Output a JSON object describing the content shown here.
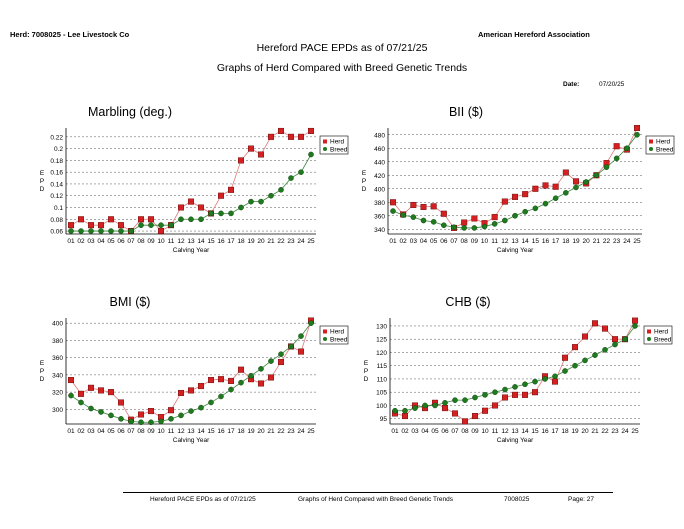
{
  "header": {
    "herd": "Herd: 7008025 - Lee Livestock Co",
    "org": "American Hereford Association",
    "title": "Hereford PACE EPDs as of 07/21/25",
    "subtitle": "Graphs of Herd Compared with Breed Genetic Trends",
    "date_label": "Date:",
    "date_value": "07/20/25"
  },
  "footer": {
    "doc": "Hereford PACE EPDs as of 07/21/25",
    "desc": "Graphs of Herd Compared with Breed Genetic Trends",
    "herd_no": "7008025",
    "page": "Page:  27"
  },
  "colors": {
    "herd": "#d42020",
    "breed": "#1f7a1f",
    "herd_line": "#e07a7a",
    "breed_line": "#3a8a3a"
  },
  "chart_data": [
    {
      "type": "line",
      "title": "Marbling (deg.)",
      "xlabel": "Calving Year",
      "ylabel": "EPD",
      "categories": [
        "01",
        "02",
        "03",
        "04",
        "05",
        "06",
        "07",
        "08",
        "09",
        "10",
        "11",
        "12",
        "13",
        "14",
        "15",
        "16",
        "17",
        "18",
        "19",
        "20",
        "21",
        "22",
        "23",
        "24",
        "25"
      ],
      "yticks": [
        "0.06",
        "0.08",
        "0.1",
        "0.12",
        "0.14",
        "0.16",
        "0.18",
        "0.2",
        "0.22"
      ],
      "ylim": [
        0.055,
        0.235
      ],
      "series": [
        {
          "name": "Herd",
          "values": [
            0.07,
            0.08,
            0.07,
            0.07,
            0.08,
            0.07,
            0.06,
            0.08,
            0.08,
            0.06,
            0.07,
            0.1,
            0.11,
            0.1,
            0.09,
            0.12,
            0.13,
            0.18,
            0.2,
            0.19,
            0.22,
            0.23,
            0.22,
            0.22,
            0.23
          ]
        },
        {
          "name": "Breed",
          "values": [
            0.06,
            0.06,
            0.06,
            0.06,
            0.06,
            0.06,
            0.06,
            0.07,
            0.07,
            0.07,
            0.07,
            0.08,
            0.08,
            0.08,
            0.09,
            0.09,
            0.09,
            0.1,
            0.11,
            0.11,
            0.12,
            0.13,
            0.15,
            0.16,
            0.19
          ]
        }
      ],
      "legend": [
        "Herd",
        "Breed"
      ]
    },
    {
      "type": "line",
      "title": "BII ($)",
      "xlabel": "Calving Year",
      "ylabel": "EPD",
      "categories": [
        "01",
        "02",
        "03",
        "04",
        "05",
        "06",
        "07",
        "08",
        "09",
        "10",
        "11",
        "12",
        "13",
        "14",
        "15",
        "16",
        "17",
        "18",
        "19",
        "20",
        "21",
        "22",
        "23",
        "24",
        "25"
      ],
      "yticks": [
        "340",
        "360",
        "380",
        "400",
        "420",
        "440",
        "460",
        "480"
      ],
      "ylim": [
        333,
        490
      ],
      "series": [
        {
          "name": "Herd",
          "values": [
            380,
            362,
            376,
            373,
            374,
            363,
            342,
            350,
            356,
            349,
            358,
            381,
            388,
            392,
            400,
            405,
            403,
            424,
            411,
            408,
            420,
            438,
            463,
            458,
            490
          ]
        },
        {
          "name": "Breed",
          "values": [
            367,
            361,
            358,
            353,
            351,
            346,
            343,
            342,
            342,
            344,
            348,
            353,
            360,
            366,
            371,
            378,
            386,
            394,
            402,
            410,
            420,
            432,
            445,
            460,
            480
          ]
        }
      ],
      "legend": [
        "Herd",
        "Breed"
      ]
    },
    {
      "type": "line",
      "title": "BMI ($)",
      "xlabel": "Calving Year",
      "ylabel": "EPD",
      "categories": [
        "01",
        "02",
        "03",
        "04",
        "05",
        "06",
        "07",
        "08",
        "09",
        "10",
        "11",
        "12",
        "13",
        "14",
        "15",
        "16",
        "17",
        "18",
        "19",
        "20",
        "21",
        "22",
        "23",
        "24",
        "25"
      ],
      "yticks": [
        "300",
        "320",
        "340",
        "360",
        "380",
        "400"
      ],
      "ylim": [
        283,
        406
      ],
      "series": [
        {
          "name": "Herd",
          "values": [
            334,
            318,
            325,
            322,
            320,
            308,
            288,
            294,
            298,
            291,
            299,
            319,
            322,
            327,
            334,
            335,
            333,
            346,
            335,
            330,
            337,
            355,
            373,
            367,
            403
          ]
        },
        {
          "name": "Breed",
          "values": [
            316,
            308,
            301,
            297,
            293,
            289,
            286,
            285,
            285,
            286,
            289,
            293,
            298,
            302,
            308,
            315,
            323,
            331,
            339,
            347,
            356,
            364,
            373,
            385,
            400
          ]
        }
      ],
      "legend": [
        "Herd",
        "Breed"
      ]
    },
    {
      "type": "line",
      "title": "CHB ($)",
      "xlabel": "Calving Year",
      "ylabel": "EPD",
      "categories": [
        "01",
        "02",
        "03",
        "04",
        "05",
        "06",
        "07",
        "08",
        "09",
        "10",
        "11",
        "12",
        "13",
        "14",
        "15",
        "16",
        "17",
        "18",
        "19",
        "20",
        "21",
        "22",
        "23",
        "24",
        "25"
      ],
      "yticks": [
        "95",
        "100",
        "105",
        "110",
        "115",
        "120",
        "125",
        "130"
      ],
      "ylim": [
        93,
        133
      ],
      "series": [
        {
          "name": "Herd",
          "values": [
            97,
            96,
            100,
            99,
            101,
            99,
            97,
            94,
            96,
            98,
            100,
            103,
            104,
            104,
            105,
            111,
            109,
            118,
            122,
            126,
            131,
            129,
            125,
            125,
            132
          ]
        },
        {
          "name": "Breed",
          "values": [
            98,
            98,
            99,
            100,
            100,
            101,
            102,
            102,
            103,
            104,
            105,
            106,
            107,
            108,
            109,
            110,
            111,
            113,
            115,
            117,
            119,
            121,
            123,
            125,
            130
          ]
        }
      ],
      "legend": [
        "Herd",
        "Breed"
      ]
    }
  ]
}
